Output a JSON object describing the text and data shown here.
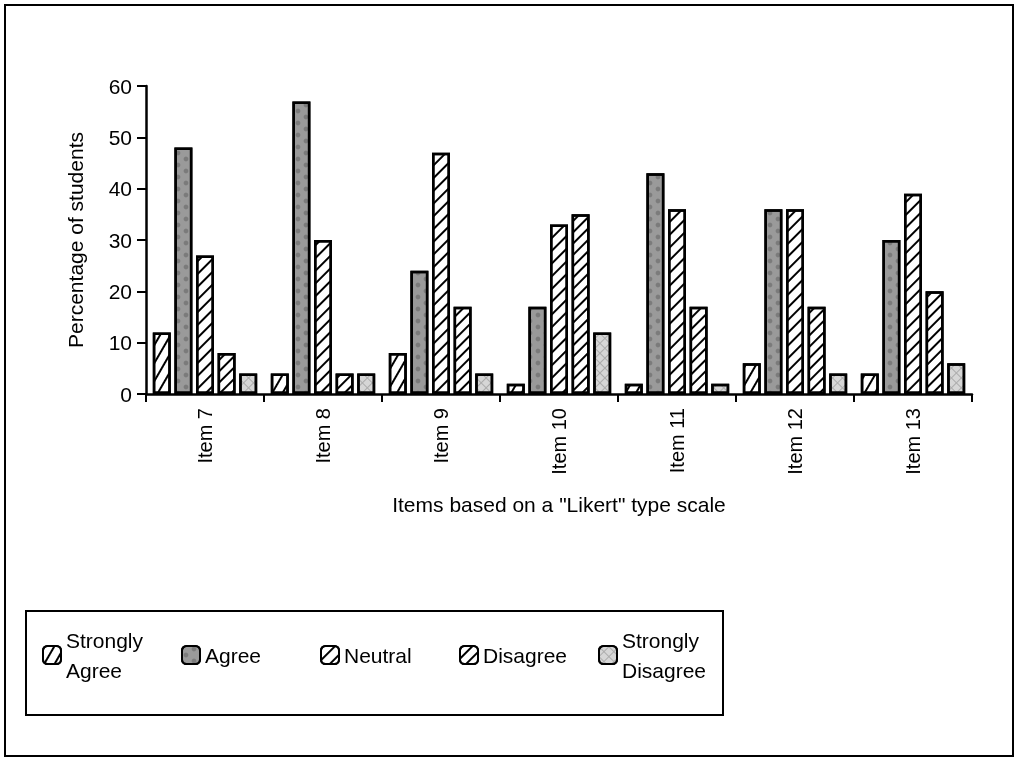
{
  "chart_data": {
    "type": "bar",
    "xlabel": "Items based on a \"Likert\" type scale",
    "ylabel": "Percentage of students",
    "categories": [
      "Item 7",
      "Item 8",
      "Item 9",
      "Item 10",
      "Item 11",
      "Item 12",
      "Item 13"
    ],
    "series": [
      {
        "name": "Strongly Agree",
        "color": "#ffffff",
        "values": [
          12,
          4,
          8,
          2,
          2,
          6,
          4
        ]
      },
      {
        "name": "Agree",
        "color": "#9a9a9a",
        "values": [
          48,
          57,
          24,
          17,
          43,
          36,
          30
        ]
      },
      {
        "name": "Neutral",
        "color": "#ffffff",
        "values": [
          27,
          30,
          47,
          33,
          36,
          36,
          39
        ]
      },
      {
        "name": "Disagree",
        "color": "#ffffff",
        "values": [
          8,
          4,
          17,
          35,
          17,
          17,
          20
        ]
      },
      {
        "name": "Strongly Disagree",
        "color": "#d6d6d6",
        "values": [
          4,
          4,
          4,
          12,
          2,
          4,
          6
        ]
      }
    ],
    "ylim": [
      0,
      60
    ],
    "yticks": [
      0,
      10,
      20,
      30,
      40,
      50,
      60
    ],
    "grid": false,
    "legend": "bottom"
  }
}
